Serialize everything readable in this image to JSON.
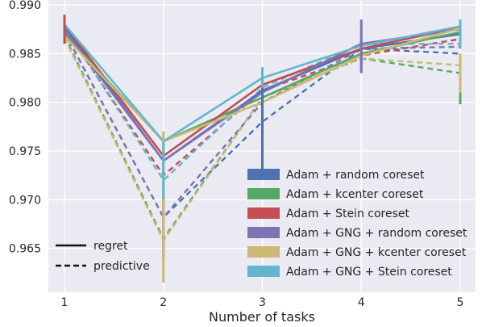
{
  "chart_data": {
    "type": "line",
    "xlabel": "Number of tasks",
    "ylabel": "",
    "x": [
      1,
      2,
      3,
      4,
      5
    ],
    "xticks": [
      "1",
      "2",
      "3",
      "4",
      "5"
    ],
    "yticks": [
      "0.965",
      "0.970",
      "0.975",
      "0.980",
      "0.985",
      "0.990"
    ],
    "ylim": [
      0.9605,
      0.9905
    ],
    "grid": true,
    "background": "#eaeaf2",
    "legend_position": "lower-right",
    "style_legend": [
      {
        "label": "regret",
        "dash": "solid"
      },
      {
        "label": "predictive",
        "dash": "dashed"
      }
    ],
    "series": [
      {
        "name": "Adam + random coreset",
        "color": "#4c72b0",
        "regret": [
          0.9878,
          0.974,
          0.9812,
          0.9855,
          0.987
        ],
        "predictive": [
          0.9872,
          0.9682,
          0.978,
          0.9855,
          0.985
        ],
        "error_bars": [
          {
            "x": 3,
            "lo": 0.9728,
            "hi": 0.983
          },
          {
            "x": 4,
            "lo": 0.983,
            "hi": 0.9865
          }
        ]
      },
      {
        "name": "Adam + kcenter coreset",
        "color": "#55a868",
        "regret": [
          0.987,
          0.976,
          0.9805,
          0.985,
          0.9872
        ],
        "predictive": [
          0.9868,
          0.966,
          0.9805,
          0.9845,
          0.983
        ],
        "error_bars": [
          {
            "x": 5,
            "lo": 0.9798,
            "hi": 0.9845
          }
        ]
      },
      {
        "name": "Adam + Stein coreset",
        "color": "#c44e52",
        "regret": [
          0.988,
          0.9745,
          0.9818,
          0.9855,
          0.9877
        ],
        "predictive": [
          0.9876,
          0.9725,
          0.9812,
          0.9848,
          0.9865
        ],
        "error_bars": [
          {
            "x": 1,
            "lo": 0.986,
            "hi": 0.989
          }
        ]
      },
      {
        "name": "Adam + GNG + random coreset",
        "color": "#8172b2",
        "regret": [
          0.9874,
          0.974,
          0.981,
          0.986,
          0.9875
        ],
        "predictive": [
          0.9872,
          0.9682,
          0.98,
          0.9855,
          0.9857
        ],
        "error_bars": [
          {
            "x": 2,
            "lo": 0.964,
            "hi": 0.97
          },
          {
            "x": 4,
            "lo": 0.983,
            "hi": 0.9885
          }
        ]
      },
      {
        "name": "Adam + GNG + kcenter coreset",
        "color": "#ccb974",
        "regret": [
          0.9868,
          0.976,
          0.98,
          0.9848,
          0.9876
        ],
        "predictive": [
          0.9866,
          0.9658,
          0.9805,
          0.9845,
          0.9838
        ],
        "error_bars": [
          {
            "x": 2,
            "lo": 0.9615,
            "hi": 0.977
          },
          {
            "x": 5,
            "lo": 0.981,
            "hi": 0.985
          }
        ]
      },
      {
        "name": "Adam + GNG + Stein coreset",
        "color": "#64b5cd",
        "regret": [
          0.988,
          0.976,
          0.9825,
          0.9858,
          0.9878
        ],
        "predictive": [
          0.9878,
          0.972,
          0.9815,
          0.986,
          0.986
        ],
        "error_bars": [
          {
            "x": 2,
            "lo": 0.97,
            "hi": 0.976
          },
          {
            "x": 3,
            "lo": 0.9815,
            "hi": 0.9836
          },
          {
            "x": 5,
            "lo": 0.9855,
            "hi": 0.9885
          }
        ]
      }
    ]
  }
}
